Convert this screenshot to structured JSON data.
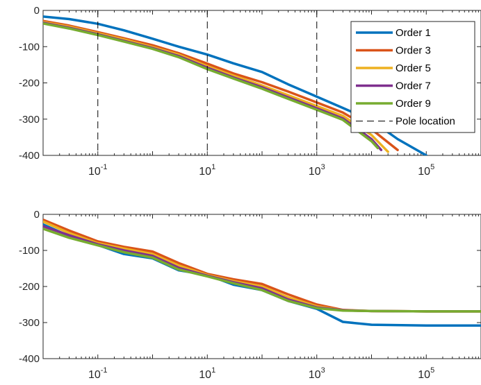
{
  "chart_data": [
    {
      "type": "line",
      "title": "",
      "xlabel": "",
      "ylabel": "",
      "x_scale": "log",
      "xlim": [
        0.01,
        1000000
      ],
      "ylim": [
        -400,
        0
      ],
      "x_ticks": [
        0.1,
        10,
        1000,
        100000
      ],
      "x_tick_base": "10",
      "x_tick_exponents": [
        "-1",
        "1",
        "3",
        "5"
      ],
      "y_ticks": [
        0,
        -100,
        -200,
        -300,
        -400
      ],
      "y_tick_labels": [
        "0",
        "-100",
        "-200",
        "-300",
        "-400"
      ],
      "grid": false,
      "legend": {
        "placement": "top-right"
      },
      "series": [
        {
          "name": "Order 1",
          "color": "#0072BD",
          "x": [
            0.01,
            0.03,
            0.1,
            0.3,
            1,
            3,
            10,
            30,
            100,
            300,
            1000,
            3000,
            10000,
            30000,
            100000
          ],
          "y": [
            -17,
            -24,
            -37,
            -55,
            -78,
            -100,
            -122,
            -146,
            -170,
            -204,
            -238,
            -269,
            -304,
            -355,
            -400
          ]
        },
        {
          "name": "Order 3",
          "color": "#D95319",
          "x": [
            0.01,
            0.03,
            0.1,
            0.3,
            1,
            3,
            10,
            30,
            100,
            300,
            1000,
            3000,
            10000,
            30000
          ],
          "y": [
            -29,
            -42,
            -60,
            -77,
            -96,
            -118,
            -147,
            -174,
            -198,
            -224,
            -254,
            -282,
            -328,
            -385
          ]
        },
        {
          "name": "Order 5",
          "color": "#EDB120",
          "x": [
            0.01,
            0.03,
            0.1,
            0.3,
            1,
            3,
            10,
            30,
            100,
            300,
            1000,
            3000,
            10000,
            20000
          ],
          "y": [
            -32,
            -45,
            -63,
            -80,
            -101,
            -122,
            -154,
            -180,
            -207,
            -234,
            -264,
            -291,
            -344,
            -390
          ]
        },
        {
          "name": "Order 7",
          "color": "#7E2F8E",
          "x": [
            0.01,
            0.03,
            0.1,
            0.3,
            1,
            3,
            10,
            30,
            100,
            300,
            1000,
            3000,
            10000,
            15000
          ],
          "y": [
            -34,
            -48,
            -66,
            -84,
            -104,
            -126,
            -158,
            -185,
            -212,
            -240,
            -270,
            -298,
            -355,
            -385
          ]
        },
        {
          "name": "Order 9",
          "color": "#77AC30",
          "x": [
            0.01,
            0.03,
            0.1,
            0.3,
            1,
            3,
            10,
            30,
            100,
            300,
            1000,
            3000,
            10000,
            13000
          ],
          "y": [
            -36,
            -50,
            -68,
            -86,
            -106,
            -129,
            -162,
            -188,
            -216,
            -244,
            -274,
            -302,
            -361,
            -380
          ]
        },
        {
          "name": "Pole location",
          "color": "#000000",
          "style": "dashed",
          "vertical_lines_at": [
            0.1,
            10,
            1000
          ]
        }
      ]
    },
    {
      "type": "line",
      "title": "",
      "xlabel": "",
      "ylabel": "",
      "x_scale": "log",
      "xlim": [
        0.01,
        1000000
      ],
      "ylim": [
        -400,
        0
      ],
      "x_ticks": [
        0.1,
        10,
        1000,
        100000
      ],
      "x_tick_base": "10",
      "x_tick_exponents": [
        "-1",
        "1",
        "3",
        "5"
      ],
      "y_ticks": [
        0,
        -100,
        -200,
        -300,
        -400
      ],
      "y_tick_labels": [
        "0",
        "-100",
        "-200",
        "-300",
        "-400"
      ],
      "grid": false,
      "series": [
        {
          "name": "Order 1",
          "color": "#0072BD",
          "x": [
            0.01,
            0.03,
            0.1,
            0.3,
            1,
            3,
            10,
            30,
            100,
            300,
            1000,
            3000,
            10000,
            100000,
            1000000
          ],
          "y": [
            -28,
            -60,
            -85,
            -110,
            -122,
            -155,
            -168,
            -195,
            -210,
            -240,
            -262,
            -298,
            -306,
            -308,
            -308
          ]
        },
        {
          "name": "Order 3",
          "color": "#D95319",
          "x": [
            0.01,
            0.03,
            0.1,
            0.3,
            1,
            3,
            10,
            30,
            100,
            300,
            1000,
            3000,
            10000,
            100000,
            1000000
          ],
          "y": [
            -15,
            -45,
            -75,
            -90,
            -103,
            -135,
            -165,
            -180,
            -193,
            -222,
            -250,
            -265,
            -268,
            -269,
            -269
          ]
        },
        {
          "name": "Order 5",
          "color": "#EDB120",
          "x": [
            0.01,
            0.03,
            0.1,
            0.3,
            1,
            3,
            10,
            30,
            100,
            300,
            1000,
            3000,
            10000,
            100000,
            1000000
          ],
          "y": [
            -20,
            -52,
            -80,
            -95,
            -110,
            -142,
            -168,
            -185,
            -200,
            -230,
            -255,
            -266,
            -268,
            -269,
            -269
          ]
        },
        {
          "name": "Order 7",
          "color": "#7E2F8E",
          "x": [
            0.01,
            0.03,
            0.1,
            0.3,
            1,
            3,
            10,
            30,
            100,
            300,
            1000,
            3000,
            10000,
            100000,
            1000000
          ],
          "y": [
            -33,
            -58,
            -83,
            -100,
            -115,
            -148,
            -170,
            -188,
            -205,
            -236,
            -258,
            -266,
            -268,
            -269,
            -269
          ]
        },
        {
          "name": "Order 9",
          "color": "#77AC30",
          "x": [
            0.01,
            0.03,
            0.1,
            0.3,
            1,
            3,
            10,
            30,
            100,
            300,
            1000,
            3000,
            10000,
            100000,
            1000000
          ],
          "y": [
            -40,
            -65,
            -86,
            -105,
            -120,
            -153,
            -172,
            -191,
            -210,
            -240,
            -260,
            -267,
            -268,
            -269,
            -269
          ]
        }
      ]
    }
  ]
}
